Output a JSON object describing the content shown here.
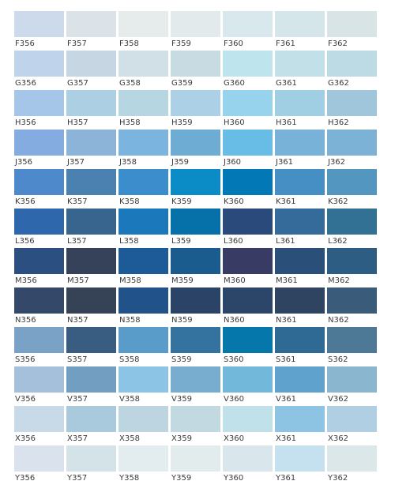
{
  "swatch_rows": [
    {
      "cells": [
        {
          "code": "F356",
          "color": "#ccdaeb"
        },
        {
          "code": "F357",
          "color": "#dbe3e8"
        },
        {
          "code": "F358",
          "color": "#e6ecec"
        },
        {
          "code": "F359",
          "color": "#e2eaec"
        },
        {
          "code": "F360",
          "color": "#d9e8ec"
        },
        {
          "code": "F361",
          "color": "#d4e6ea"
        },
        {
          "code": "F362",
          "color": "#d8e4e6"
        }
      ]
    },
    {
      "cells": [
        {
          "code": "G356",
          "color": "#bfd4ea"
        },
        {
          "code": "G357",
          "color": "#c6d6e2"
        },
        {
          "code": "G358",
          "color": "#d1e0e6"
        },
        {
          "code": "G359",
          "color": "#c8dae2"
        },
        {
          "code": "G360",
          "color": "#bee4ee"
        },
        {
          "code": "G361",
          "color": "#c1e0e8"
        },
        {
          "code": "G362",
          "color": "#bcdbe4"
        }
      ]
    },
    {
      "cells": [
        {
          "code": "H356",
          "color": "#a6c6e9"
        },
        {
          "code": "H357",
          "color": "#accfe4"
        },
        {
          "code": "H358",
          "color": "#b6d6e2"
        },
        {
          "code": "H359",
          "color": "#acd0e6"
        },
        {
          "code": "H360",
          "color": "#97d3ed"
        },
        {
          "code": "H361",
          "color": "#a0cfe3"
        },
        {
          "code": "H362",
          "color": "#9fc6da"
        }
      ]
    },
    {
      "cells": [
        {
          "code": "J356",
          "color": "#85ace0"
        },
        {
          "code": "J357",
          "color": "#8cb4d8"
        },
        {
          "code": "J358",
          "color": "#7ab4df"
        },
        {
          "code": "J359",
          "color": "#6eacd4"
        },
        {
          "code": "J360",
          "color": "#67bde6"
        },
        {
          "code": "J361",
          "color": "#78b2d9"
        },
        {
          "code": "J362",
          "color": "#7cb2d6"
        }
      ]
    },
    {
      "cells": [
        {
          "code": "K356",
          "color": "#4d89cb"
        },
        {
          "code": "K357",
          "color": "#4a81b1"
        },
        {
          "code": "K358",
          "color": "#3b8dcc"
        },
        {
          "code": "K359",
          "color": "#0b8cc7"
        },
        {
          "code": "K360",
          "color": "#0278b6"
        },
        {
          "code": "K361",
          "color": "#458fc4"
        },
        {
          "code": "K362",
          "color": "#5396c0"
        }
      ]
    },
    {
      "cells": [
        {
          "code": "L356",
          "color": "#2f67ad"
        },
        {
          "code": "L357",
          "color": "#37658e"
        },
        {
          "code": "L358",
          "color": "#1b78bb"
        },
        {
          "code": "L359",
          "color": "#0670a8"
        },
        {
          "code": "L360",
          "color": "#294a7b"
        },
        {
          "code": "L361",
          "color": "#356b9b"
        },
        {
          "code": "L362",
          "color": "#327094"
        }
      ]
    },
    {
      "cells": [
        {
          "code": "M356",
          "color": "#2b4f80"
        },
        {
          "code": "M357",
          "color": "#36425a"
        },
        {
          "code": "M358",
          "color": "#1c5b98"
        },
        {
          "code": "M359",
          "color": "#1a5c8d"
        },
        {
          "code": "M360",
          "color": "#383b63"
        },
        {
          "code": "M361",
          "color": "#2a5079"
        },
        {
          "code": "M362",
          "color": "#2d5d83"
        }
      ]
    },
    {
      "cells": [
        {
          "code": "N356",
          "color": "#34496a"
        },
        {
          "code": "N357",
          "color": "#364356"
        },
        {
          "code": "N358",
          "color": "#215289"
        },
        {
          "code": "N359",
          "color": "#2b4367"
        },
        {
          "code": "N360",
          "color": "#2c466a"
        },
        {
          "code": "N361",
          "color": "#2e4460"
        },
        {
          "code": "N362",
          "color": "#3a5b7a"
        }
      ]
    },
    {
      "cells": [
        {
          "code": "S356",
          "color": "#7aa1c6"
        },
        {
          "code": "S357",
          "color": "#395d80"
        },
        {
          "code": "S358",
          "color": "#599cca"
        },
        {
          "code": "S359",
          "color": "#34729f"
        },
        {
          "code": "S360",
          "color": "#0677ab"
        },
        {
          "code": "S361",
          "color": "#2e6a93"
        },
        {
          "code": "S362",
          "color": "#4e7996"
        }
      ]
    },
    {
      "cells": [
        {
          "code": "V356",
          "color": "#a5c0db"
        },
        {
          "code": "V357",
          "color": "#729fc1"
        },
        {
          "code": "V358",
          "color": "#8bc4e4"
        },
        {
          "code": "V359",
          "color": "#79adcf"
        },
        {
          "code": "V360",
          "color": "#72b8db"
        },
        {
          "code": "V361",
          "color": "#5fa2ce"
        },
        {
          "code": "V362",
          "color": "#8ab6cf"
        }
      ]
    },
    {
      "cells": [
        {
          "code": "X356",
          "color": "#c8d9e7"
        },
        {
          "code": "X357",
          "color": "#a9c9dd"
        },
        {
          "code": "X358",
          "color": "#bcd5e0"
        },
        {
          "code": "X359",
          "color": "#c3d9e2"
        },
        {
          "code": "X360",
          "color": "#c0e0ea"
        },
        {
          "code": "X361",
          "color": "#8ec4e3"
        },
        {
          "code": "X362",
          "color": "#b0cfe2"
        }
      ]
    },
    {
      "cells": [
        {
          "code": "Y356",
          "color": "#dae2ed"
        },
        {
          "code": "Y357",
          "color": "#d4e3e8"
        },
        {
          "code": "Y358",
          "color": "#e3ecee"
        },
        {
          "code": "Y359",
          "color": "#e2ecec"
        },
        {
          "code": "Y360",
          "color": "#d9e6ec"
        },
        {
          "code": "Y361",
          "color": "#c5e0ef"
        },
        {
          "code": "Y362",
          "color": "#dce7ea"
        }
      ]
    }
  ]
}
